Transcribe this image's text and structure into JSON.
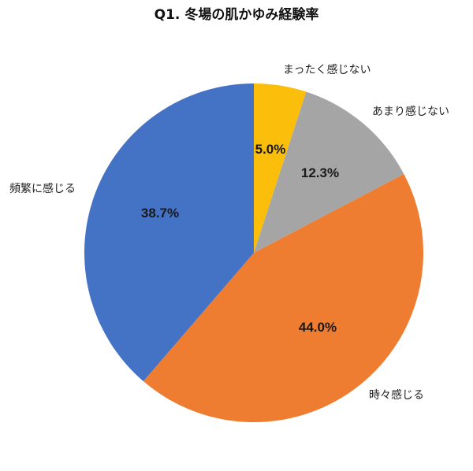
{
  "chart_data": {
    "type": "pie",
    "title": "Q1. 冬場の肌かゆみ経験率",
    "categories": [
      "まったく感じない",
      "あまり感じない",
      "時々感じる",
      "頻繁に感じる"
    ],
    "values": [
      5.0,
      12.3,
      44.0,
      38.7
    ],
    "value_labels": [
      "5.0%",
      "12.3%",
      "44.0%",
      "38.7%"
    ],
    "colors": [
      "#FBBF0B",
      "#A5A5A5",
      "#EE7D31",
      "#4472C4"
    ]
  }
}
